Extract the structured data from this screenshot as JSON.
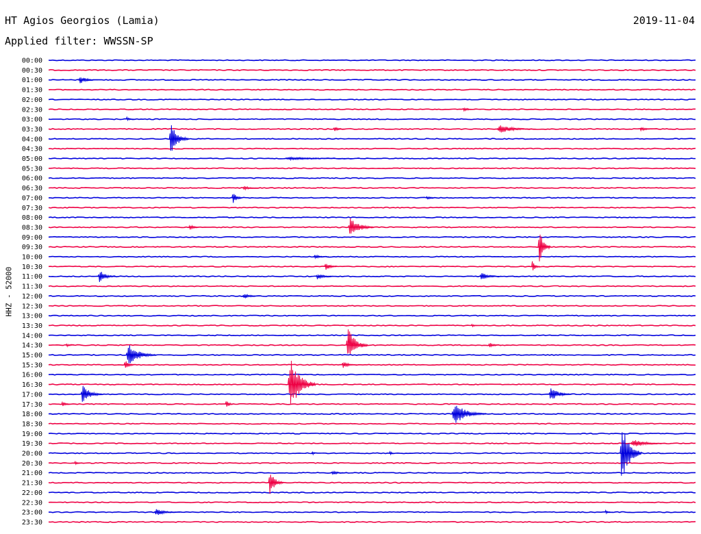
{
  "header": {
    "station": "HT Agios Georgios (Lamia)",
    "date": "2019-11-04",
    "filter": "Applied filter: WWSSN-SP"
  },
  "chart_data": {
    "type": "line",
    "title": "HT Agios Georgios (Lamia)",
    "channel_label": "HHZ - 52000",
    "colors": {
      "even_rows": "#0000dd",
      "odd_rows": "#ee0044"
    },
    "rows": [
      "00:00",
      "00:30",
      "01:00",
      "01:30",
      "02:00",
      "02:30",
      "03:00",
      "03:30",
      "04:00",
      "04:30",
      "05:00",
      "05:30",
      "06:00",
      "06:30",
      "07:00",
      "07:30",
      "08:00",
      "08:30",
      "09:00",
      "09:30",
      "10:00",
      "10:30",
      "11:00",
      "11:30",
      "12:00",
      "12:30",
      "13:00",
      "13:30",
      "14:00",
      "14:30",
      "15:00",
      "15:30",
      "16:00",
      "16:30",
      "17:00",
      "17:30",
      "18:00",
      "18:30",
      "19:00",
      "19:30",
      "20:00",
      "20:30",
      "21:00",
      "21:30",
      "22:00",
      "22:30",
      "23:00",
      "23:30"
    ],
    "x_minutes": [
      0,
      30
    ],
    "events": [
      {
        "row": 2,
        "minute": 1.4,
        "amp": 6,
        "dur": 0.9
      },
      {
        "row": 5,
        "minute": 19.2,
        "amp": 3,
        "dur": 0.6
      },
      {
        "row": 6,
        "minute": 3.6,
        "amp": 3,
        "dur": 0.4
      },
      {
        "row": 7,
        "minute": 13.2,
        "amp": 4,
        "dur": 0.6
      },
      {
        "row": 7,
        "minute": 20.8,
        "amp": 6,
        "dur": 1.8
      },
      {
        "row": 7,
        "minute": 27.4,
        "amp": 3,
        "dur": 0.8
      },
      {
        "row": 8,
        "minute": 5.6,
        "amp": 22,
        "dur": 0.9
      },
      {
        "row": 10,
        "minute": 10.9,
        "amp": 2,
        "dur": 4.0
      },
      {
        "row": 13,
        "minute": 9.0,
        "amp": 3,
        "dur": 0.8
      },
      {
        "row": 14,
        "minute": 8.5,
        "amp": 9,
        "dur": 0.5
      },
      {
        "row": 14,
        "minute": 17.5,
        "amp": 3,
        "dur": 0.5
      },
      {
        "row": 17,
        "minute": 6.5,
        "amp": 4,
        "dur": 0.6
      },
      {
        "row": 17,
        "minute": 13.9,
        "amp": 15,
        "dur": 1.2
      },
      {
        "row": 19,
        "minute": 22.7,
        "amp": 28,
        "dur": 0.6
      },
      {
        "row": 20,
        "minute": 12.3,
        "amp": 3,
        "dur": 0.7
      },
      {
        "row": 21,
        "minute": 12.8,
        "amp": 6,
        "dur": 0.6
      },
      {
        "row": 21,
        "minute": 22.4,
        "amp": 8,
        "dur": 0.4
      },
      {
        "row": 22,
        "minute": 2.3,
        "amp": 10,
        "dur": 0.8
      },
      {
        "row": 22,
        "minute": 12.4,
        "amp": 5,
        "dur": 0.9
      },
      {
        "row": 22,
        "minute": 20.0,
        "amp": 6,
        "dur": 0.9
      },
      {
        "row": 24,
        "minute": 9.0,
        "amp": 4,
        "dur": 0.8
      },
      {
        "row": 27,
        "minute": 19.6,
        "amp": 3,
        "dur": 0.3
      },
      {
        "row": 29,
        "minute": 0.8,
        "amp": 3,
        "dur": 0.4
      },
      {
        "row": 29,
        "minute": 13.8,
        "amp": 26,
        "dur": 1.0
      },
      {
        "row": 29,
        "minute": 20.4,
        "amp": 4,
        "dur": 0.6
      },
      {
        "row": 30,
        "minute": 3.6,
        "amp": 16,
        "dur": 1.4
      },
      {
        "row": 31,
        "minute": 3.5,
        "amp": 8,
        "dur": 0.5
      },
      {
        "row": 31,
        "minute": 13.6,
        "amp": 5,
        "dur": 0.7
      },
      {
        "row": 33,
        "minute": 11.1,
        "amp": 40,
        "dur": 1.3
      },
      {
        "row": 34,
        "minute": 1.5,
        "amp": 14,
        "dur": 1.0
      },
      {
        "row": 34,
        "minute": 23.2,
        "amp": 10,
        "dur": 1.1
      },
      {
        "row": 35,
        "minute": 0.6,
        "amp": 4,
        "dur": 0.5
      },
      {
        "row": 35,
        "minute": 8.2,
        "amp": 6,
        "dur": 0.4
      },
      {
        "row": 36,
        "minute": 18.7,
        "amp": 16,
        "dur": 1.6
      },
      {
        "row": 39,
        "minute": 27.0,
        "amp": 6,
        "dur": 1.6
      },
      {
        "row": 40,
        "minute": 12.2,
        "amp": 4,
        "dur": 0.2
      },
      {
        "row": 40,
        "minute": 15.8,
        "amp": 5,
        "dur": 0.2
      },
      {
        "row": 40,
        "minute": 26.5,
        "amp": 45,
        "dur": 1.0
      },
      {
        "row": 41,
        "minute": 1.2,
        "amp": 4,
        "dur": 0.3
      },
      {
        "row": 42,
        "minute": 13.1,
        "amp": 3,
        "dur": 0.8
      },
      {
        "row": 43,
        "minute": 10.2,
        "amp": 18,
        "dur": 0.7
      },
      {
        "row": 46,
        "minute": 4.9,
        "amp": 5,
        "dur": 1.2
      },
      {
        "row": 46,
        "minute": 25.8,
        "amp": 3,
        "dur": 0.4
      }
    ]
  }
}
